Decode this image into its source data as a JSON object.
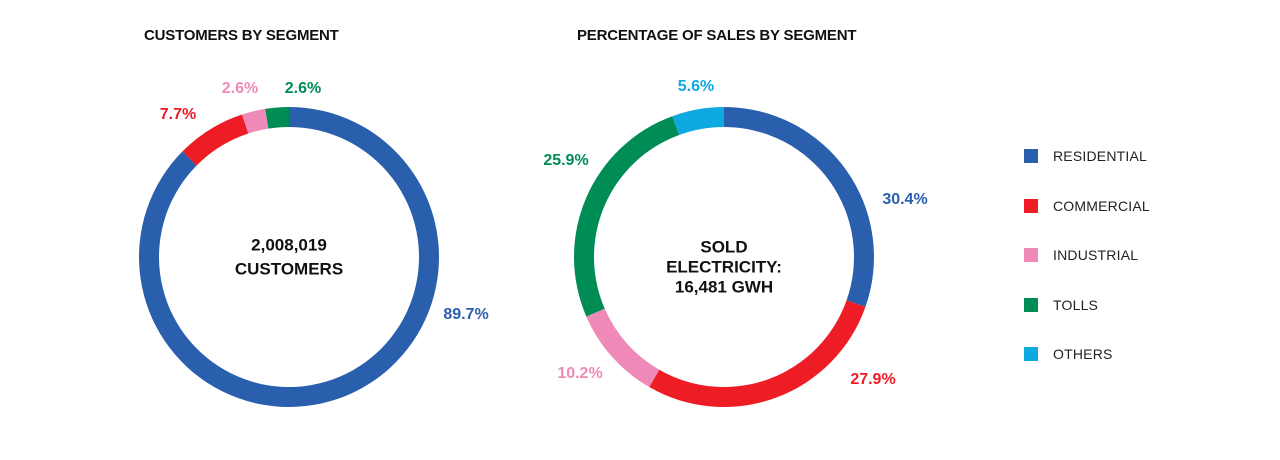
{
  "colors": {
    "residential": "#2a5fae",
    "commercial": "#ee1c25",
    "industrial": "#ef8ab8",
    "tolls": "#008c55",
    "others": "#0ea9e0"
  },
  "legend": [
    {
      "label": "RESIDENTIAL",
      "color": "#2a5fae"
    },
    {
      "label": "COMMERCIAL",
      "color": "#ee1c25"
    },
    {
      "label": "INDUSTRIAL",
      "color": "#ef8ab8"
    },
    {
      "label": "TOLLS",
      "color": "#008c55"
    },
    {
      "label": "OTHERS",
      "color": "#0ea9e0"
    }
  ],
  "chart_data": [
    {
      "type": "pie",
      "title": "CUSTOMERS BY SEGMENT",
      "center_text": [
        "2,008,019",
        "CUSTOMERS"
      ],
      "segments": [
        {
          "name": "RESIDENTIAL",
          "value": 89.7,
          "label": "89.7%",
          "color": "#2a5fae"
        },
        {
          "name": "COMMERCIAL",
          "value": 7.7,
          "label": "7.7%",
          "color": "#ee1c25"
        },
        {
          "name": "INDUSTRIAL",
          "value": 2.6,
          "label": "2.6%",
          "color": "#ef8ab8"
        },
        {
          "name": "TOLLS",
          "value": 2.6,
          "label": "2.6%",
          "color": "#008c55"
        }
      ],
      "legend": "right"
    },
    {
      "type": "pie",
      "title": "PERCENTAGE OF SALES BY SEGMENT",
      "center_text": [
        "SOLD",
        "ELECTRICITY:",
        "16,481 GWH"
      ],
      "segments": [
        {
          "name": "RESIDENTIAL",
          "value": 30.4,
          "label": "30.4%",
          "color": "#2a5fae"
        },
        {
          "name": "COMMERCIAL",
          "value": 27.9,
          "label": "27.9%",
          "color": "#ee1c25"
        },
        {
          "name": "INDUSTRIAL",
          "value": 10.2,
          "label": "10.2%",
          "color": "#ef8ab8"
        },
        {
          "name": "TOLLS",
          "value": 25.9,
          "label": "25.9%",
          "color": "#008c55"
        },
        {
          "name": "OTHERS",
          "value": 5.6,
          "label": "5.6%",
          "color": "#0ea9e0"
        }
      ],
      "legend": "right"
    }
  ]
}
